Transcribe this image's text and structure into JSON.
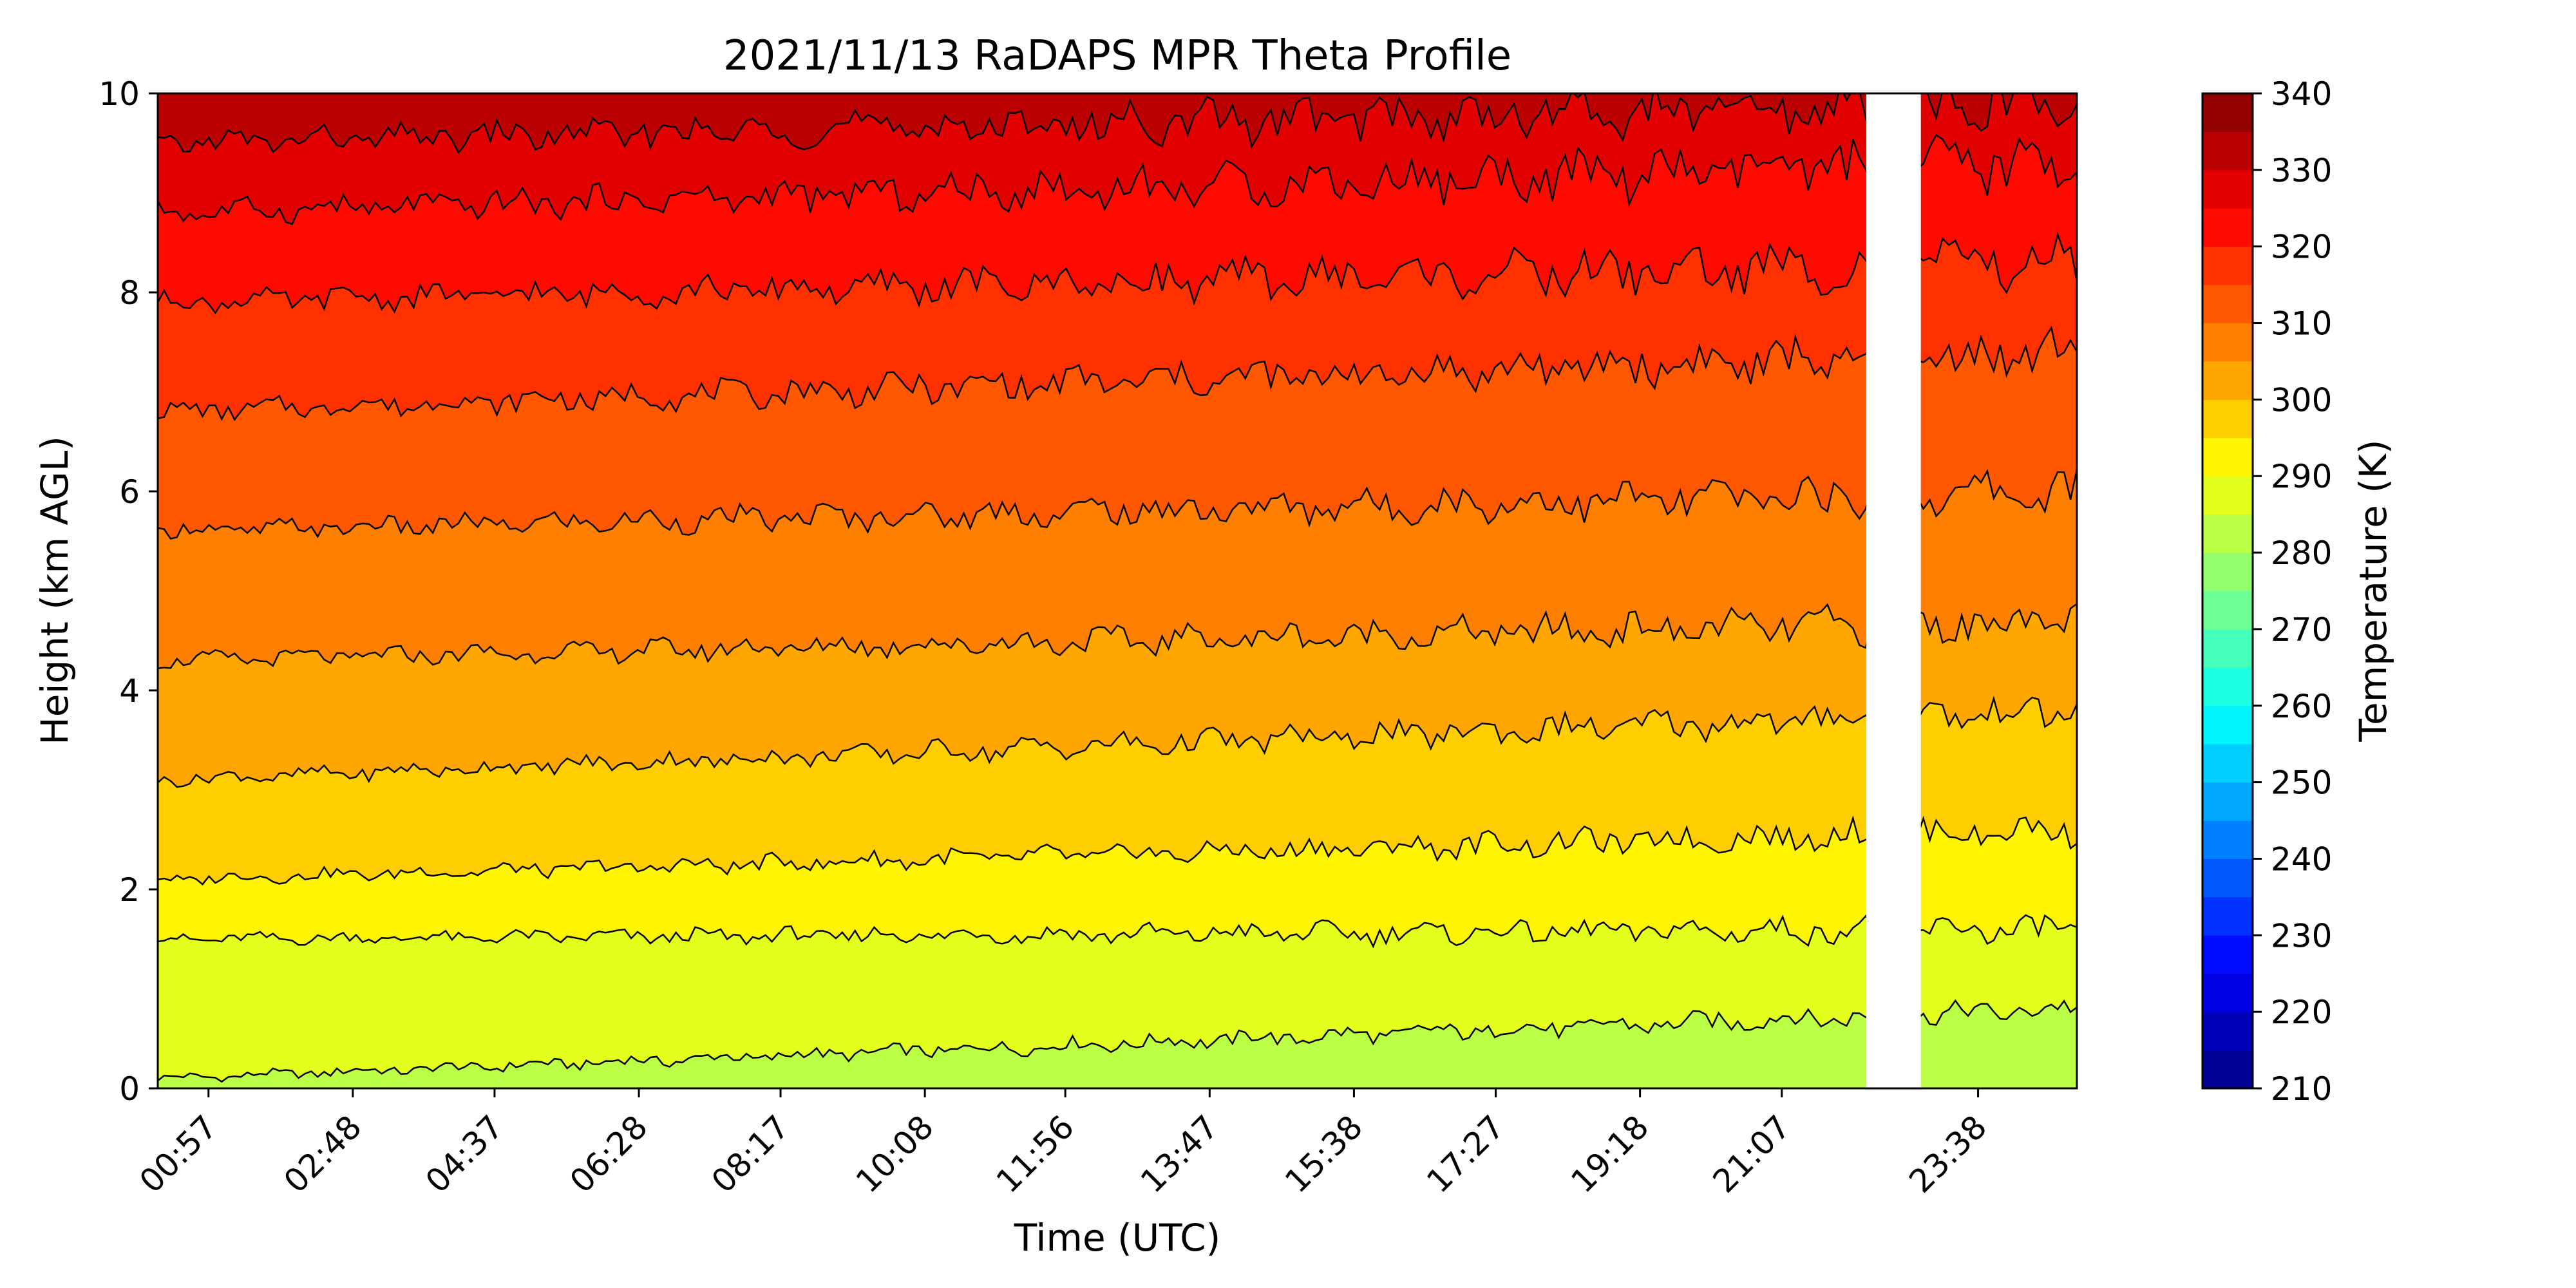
{
  "chart_data": {
    "type": "heatmap",
    "subtype": "filled-contour-with-line-contours",
    "title": "2021/11/13 RaDAPS MPR Theta Profile",
    "xlabel": "Time (UTC)",
    "ylabel": "Height (km AGL)",
    "xlim_hours": [
      0.3,
      24.9
    ],
    "ylim": [
      0,
      10
    ],
    "x_ticks": [
      {
        "hour": 0.95,
        "label": "00:57"
      },
      {
        "hour": 2.8,
        "label": "02:48"
      },
      {
        "hour": 4.617,
        "label": "04:37"
      },
      {
        "hour": 6.467,
        "label": "06:28"
      },
      {
        "hour": 8.283,
        "label": "08:17"
      },
      {
        "hour": 10.133,
        "label": "10:08"
      },
      {
        "hour": 11.933,
        "label": "11:56"
      },
      {
        "hour": 13.783,
        "label": "13:47"
      },
      {
        "hour": 15.633,
        "label": "15:38"
      },
      {
        "hour": 17.45,
        "label": "17:27"
      },
      {
        "hour": 19.3,
        "label": "19:18"
      },
      {
        "hour": 21.117,
        "label": "21:07"
      },
      {
        "hour": 23.633,
        "label": "23:38"
      }
    ],
    "y_ticks": [
      "0",
      "2",
      "4",
      "6",
      "8",
      "10"
    ],
    "grid": false,
    "colorbar": {
      "label": "Temperature (K)",
      "colormap": "jet",
      "range": [
        210,
        340
      ],
      "levels": [
        210,
        215,
        220,
        225,
        230,
        235,
        240,
        245,
        250,
        255,
        260,
        265,
        270,
        275,
        280,
        285,
        290,
        295,
        300,
        305,
        310,
        315,
        320,
        325,
        330,
        335,
        340
      ],
      "tick_labels": [
        "210",
        "220",
        "230",
        "240",
        "250",
        "260",
        "270",
        "280",
        "290",
        "300",
        "310",
        "320",
        "330",
        "340"
      ]
    },
    "contour_lines_K": [
      280,
      285,
      290,
      295,
      300,
      305,
      310,
      315,
      320,
      325,
      330
    ],
    "approx_isentrope_heights_km": [
      {
        "theta": 285,
        "start_km": 0.1,
        "end_km": 0.8
      },
      {
        "theta": 290,
        "start_km": 1.5,
        "end_km": 1.6
      },
      {
        "theta": 295,
        "start_km": 2.1,
        "end_km": 2.6
      },
      {
        "theta": 300,
        "start_km": 3.1,
        "end_km": 3.8
      },
      {
        "theta": 305,
        "start_km": 4.3,
        "end_km": 4.7
      },
      {
        "theta": 310,
        "start_km": 5.6,
        "end_km": 6.0
      },
      {
        "theta": 315,
        "start_km": 6.8,
        "end_km": 7.4
      },
      {
        "theta": 320,
        "start_km": 7.9,
        "end_km": 8.3
      },
      {
        "theta": 325,
        "start_km": 8.8,
        "end_km": 9.3
      },
      {
        "theta": 330,
        "start_km": 9.5,
        "end_km": 9.9
      }
    ],
    "missing_data_gap_hours": [
      22.2,
      22.9
    ]
  },
  "colors": {
    "missing_data": "#ffffff",
    "contour_line": "#000000"
  }
}
